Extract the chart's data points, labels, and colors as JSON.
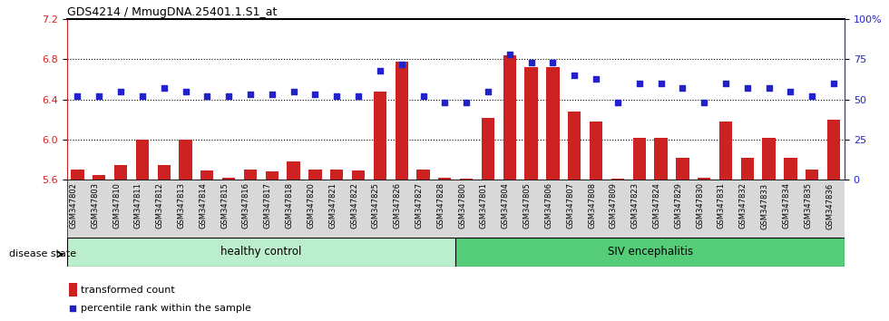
{
  "title": "GDS4214 / MmugDNA.25401.1.S1_at",
  "samples": [
    "GSM347802",
    "GSM347803",
    "GSM347810",
    "GSM347811",
    "GSM347812",
    "GSM347813",
    "GSM347814",
    "GSM347815",
    "GSM347816",
    "GSM347817",
    "GSM347818",
    "GSM347820",
    "GSM347821",
    "GSM347822",
    "GSM347825",
    "GSM347826",
    "GSM347827",
    "GSM347828",
    "GSM347800",
    "GSM347801",
    "GSM347804",
    "GSM347805",
    "GSM347806",
    "GSM347807",
    "GSM347808",
    "GSM347809",
    "GSM347823",
    "GSM347824",
    "GSM347829",
    "GSM347830",
    "GSM347831",
    "GSM347832",
    "GSM347833",
    "GSM347834",
    "GSM347835",
    "GSM347836"
  ],
  "bar_values": [
    5.7,
    5.65,
    5.75,
    6.0,
    5.75,
    6.0,
    5.69,
    5.62,
    5.7,
    5.68,
    5.78,
    5.7,
    5.7,
    5.69,
    6.48,
    6.78,
    5.7,
    5.62,
    5.61,
    6.22,
    6.84,
    6.72,
    6.72,
    6.28,
    6.18,
    5.61,
    6.02,
    6.02,
    5.82,
    5.62,
    6.18,
    5.82,
    6.02,
    5.82,
    5.7,
    6.2
  ],
  "percentile_values": [
    52,
    52,
    55,
    52,
    57,
    55,
    52,
    52,
    53,
    53,
    55,
    53,
    52,
    52,
    68,
    72,
    52,
    48,
    48,
    55,
    78,
    73,
    73,
    65,
    63,
    48,
    60,
    60,
    57,
    48,
    60,
    57,
    57,
    55,
    52,
    60
  ],
  "healthy_count": 18,
  "ylim_left": [
    5.6,
    7.2
  ],
  "ylim_right": [
    0,
    100
  ],
  "yticks_left": [
    5.6,
    6.0,
    6.4,
    6.8,
    7.2
  ],
  "yticks_right": [
    0,
    25,
    50,
    75,
    100
  ],
  "bar_color": "#CC2222",
  "percentile_color": "#2222CC",
  "healthy_color": "#BBEECC",
  "siv_color": "#55CC77",
  "grid_color": "#000000",
  "bg_color": "#FFFFFF",
  "label_bar": "transformed count",
  "label_pct": "percentile rank within the sample",
  "group1_label": "healthy control",
  "group2_label": "SIV encephalitis",
  "disease_state_label": "disease state"
}
